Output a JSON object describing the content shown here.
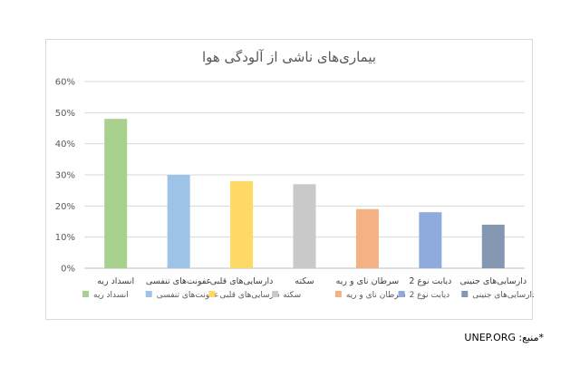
{
  "chart_data": {
    "type": "bar",
    "title": "بیماری‌های ناشی از آلودگی هوا",
    "categories": [
      "انسداد ریه",
      "عفونت‌های تنفسی",
      "دارسایی‌های قلبی",
      "سکته",
      "سرطان نای و ریه",
      "دیابت نوع 2",
      "دارسایی‌های جنینی"
    ],
    "values": [
      0.48,
      0.3,
      0.28,
      0.27,
      0.19,
      0.18,
      0.14
    ],
    "colors": [
      "#a9d18e",
      "#9dc3e6",
      "#ffd966",
      "#c9c9c9",
      "#f4b183",
      "#8faadc",
      "#8497b0"
    ],
    "ylim": [
      0,
      0.6
    ],
    "yticks": [
      "0%",
      "10%",
      "20%",
      "30%",
      "40%",
      "50%",
      "60%"
    ],
    "grid": true,
    "legend_position": "bottom",
    "xlabel": "",
    "ylabel": ""
  },
  "source_note": "*منبع: UNEP.ORG"
}
